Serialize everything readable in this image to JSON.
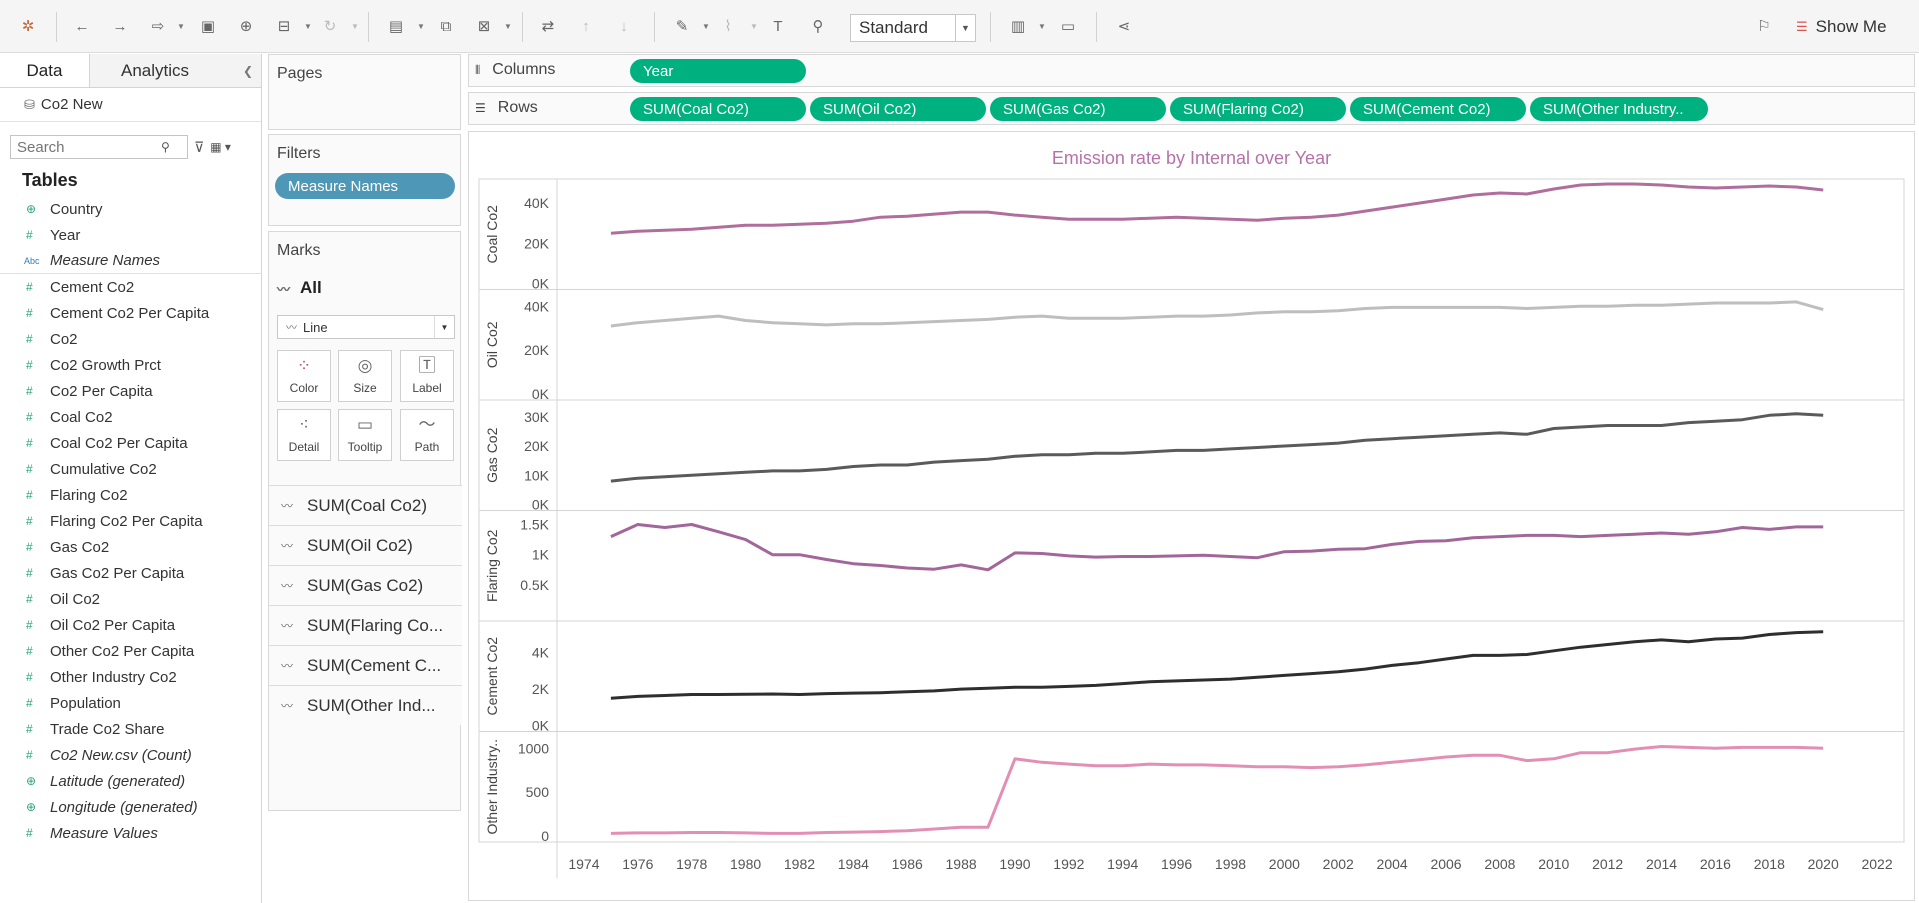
{
  "toolbar": {
    "format_dropdown": "Standard",
    "show_me": "Show Me"
  },
  "left_pane": {
    "tabs": [
      "Data",
      "Analytics"
    ],
    "datasource": "Co2 New",
    "search_placeholder": "Search",
    "tables_heading": "Tables",
    "fields": [
      {
        "icon": "globe",
        "label": "Country"
      },
      {
        "icon": "hash",
        "label": "Year"
      },
      {
        "icon": "abc",
        "label": "Measure Names",
        "italic": true
      },
      {
        "icon": "hash",
        "label": "Cement Co2"
      },
      {
        "icon": "hash",
        "label": "Cement Co2 Per Capita"
      },
      {
        "icon": "hash",
        "label": "Co2"
      },
      {
        "icon": "hash",
        "label": "Co2 Growth Prct"
      },
      {
        "icon": "hash",
        "label": "Co2 Per Capita"
      },
      {
        "icon": "hash",
        "label": "Coal Co2"
      },
      {
        "icon": "hash",
        "label": "Coal Co2 Per Capita"
      },
      {
        "icon": "hash",
        "label": "Cumulative Co2"
      },
      {
        "icon": "hash",
        "label": "Flaring Co2"
      },
      {
        "icon": "hash",
        "label": "Flaring Co2 Per Capita"
      },
      {
        "icon": "hash",
        "label": "Gas Co2"
      },
      {
        "icon": "hash",
        "label": "Gas Co2 Per Capita"
      },
      {
        "icon": "hash",
        "label": "Oil Co2"
      },
      {
        "icon": "hash",
        "label": "Oil Co2 Per Capita"
      },
      {
        "icon": "hash",
        "label": "Other Co2 Per Capita"
      },
      {
        "icon": "hash",
        "label": "Other Industry Co2"
      },
      {
        "icon": "hash",
        "label": "Population"
      },
      {
        "icon": "hash",
        "label": "Trade Co2 Share"
      },
      {
        "icon": "hash",
        "label": "Co2 New.csv (Count)",
        "italic": true
      },
      {
        "icon": "globe",
        "label": "Latitude (generated)",
        "italic": true
      },
      {
        "icon": "globe",
        "label": "Longitude (generated)",
        "italic": true
      },
      {
        "icon": "hash",
        "label": "Measure Values",
        "italic": true
      }
    ]
  },
  "pages": {
    "title": "Pages"
  },
  "filters": {
    "title": "Filters",
    "pill": "Measure Names"
  },
  "marks": {
    "title": "Marks",
    "all_label": "All",
    "mark_type": "Line",
    "buttons": [
      "Color",
      "Size",
      "Label",
      "Detail",
      "Tooltip",
      "Path"
    ],
    "measures": [
      "SUM(Coal Co2)",
      "SUM(Oil Co2)",
      "SUM(Gas Co2)",
      "SUM(Flaring Co...",
      "SUM(Cement C...",
      "SUM(Other Ind..."
    ]
  },
  "shelves": {
    "columns_label": "Columns",
    "rows_label": "Rows",
    "columns": [
      "Year"
    ],
    "rows": [
      "SUM(Coal Co2)",
      "SUM(Oil Co2)",
      "SUM(Gas Co2)",
      "SUM(Flaring Co2)",
      "SUM(Cement Co2)",
      "SUM(Other Industry.."
    ]
  },
  "chart_data": {
    "type": "line",
    "title": "Emission rate by Internal over Year",
    "xlabel": "",
    "x": [
      1975,
      1976,
      1977,
      1978,
      1979,
      1980,
      1981,
      1982,
      1983,
      1984,
      1985,
      1986,
      1987,
      1988,
      1989,
      1990,
      1991,
      1992,
      1993,
      1994,
      1995,
      1996,
      1997,
      1998,
      1999,
      2000,
      2001,
      2002,
      2003,
      2004,
      2005,
      2006,
      2007,
      2008,
      2009,
      2010,
      2011,
      2012,
      2013,
      2014,
      2015,
      2016,
      2017,
      2018,
      2019,
      2020
    ],
    "x_ticks": [
      "1974",
      "1976",
      "1978",
      "1980",
      "1982",
      "1984",
      "1986",
      "1988",
      "1990",
      "1992",
      "1994",
      "1996",
      "1998",
      "2000",
      "2002",
      "2004",
      "2006",
      "2008",
      "2010",
      "2012",
      "2014",
      "2016",
      "2018",
      "2020",
      "2022"
    ],
    "xlim": [
      1973,
      2023
    ],
    "series": [
      {
        "name": "Coal Co2",
        "color": "#b06e9c",
        "ylim": [
          0,
          48000
        ],
        "y_ticks": [
          "0K",
          "20K",
          "40K"
        ],
        "y_tick_values": [
          0,
          20000,
          40000
        ],
        "values": [
          25000,
          26000,
          26500,
          27000,
          28000,
          29000,
          29000,
          29500,
          30000,
          31000,
          33000,
          33500,
          34500,
          35500,
          35500,
          34000,
          33000,
          32000,
          32000,
          32000,
          32500,
          33000,
          32500,
          32000,
          31500,
          32500,
          33000,
          34000,
          36000,
          38000,
          40000,
          42000,
          44000,
          45000,
          44500,
          47000,
          49000,
          49500,
          49500,
          49000,
          48000,
          47500,
          48000,
          48500,
          48000,
          46500
        ]
      },
      {
        "name": "Oil Co2",
        "color": "#bebebe",
        "ylim": [
          0,
          44000
        ],
        "y_ticks": [
          "0K",
          "20K",
          "40K"
        ],
        "y_tick_values": [
          0,
          20000,
          40000
        ],
        "values": [
          31000,
          32500,
          33500,
          34500,
          35500,
          33500,
          32500,
          32000,
          31500,
          32000,
          32000,
          32500,
          33000,
          33500,
          34000,
          35000,
          35500,
          34500,
          34500,
          34500,
          35000,
          35500,
          35500,
          36000,
          37000,
          37500,
          37500,
          38000,
          39000,
          39500,
          39500,
          39500,
          39500,
          39500,
          39000,
          39500,
          40000,
          40000,
          40500,
          40500,
          41000,
          41500,
          41500,
          41500,
          42000,
          38500
        ]
      },
      {
        "name": "Gas Co2",
        "color": "#5a5a5a",
        "ylim": [
          0,
          33000
        ],
        "y_ticks": [
          "0K",
          "10K",
          "20K",
          "30K"
        ],
        "y_tick_values": [
          0,
          10000,
          20000,
          30000
        ],
        "values": [
          8000,
          9000,
          9500,
          10000,
          10500,
          11000,
          11500,
          11500,
          12000,
          13000,
          13500,
          13500,
          14500,
          15000,
          15500,
          16500,
          17000,
          17000,
          17500,
          17500,
          18000,
          18500,
          18500,
          19000,
          19500,
          20000,
          20500,
          21000,
          22000,
          22500,
          23000,
          23500,
          24000,
          24500,
          24000,
          26000,
          26500,
          27000,
          27000,
          27000,
          28000,
          28500,
          29000,
          30500,
          31000,
          30500
        ]
      },
      {
        "name": "Flaring Co2",
        "color": "#a3669a",
        "ylim": [
          0,
          1600
        ],
        "y_ticks": [
          "0.5K",
          "1K",
          "1.5K"
        ],
        "y_tick_values": [
          500,
          1000,
          1500
        ],
        "values": [
          1300,
          1500,
          1450,
          1500,
          1380,
          1250,
          1000,
          1000,
          920,
          850,
          820,
          780,
          760,
          830,
          750,
          1030,
          1020,
          980,
          960,
          970,
          970,
          980,
          990,
          970,
          950,
          1050,
          1060,
          1090,
          1100,
          1170,
          1220,
          1230,
          1280,
          1300,
          1320,
          1320,
          1300,
          1320,
          1340,
          1360,
          1340,
          1380,
          1450,
          1420,
          1460,
          1460
        ]
      },
      {
        "name": "Cement Co2",
        "color": "#2e2e2e",
        "ylim": [
          0,
          5300
        ],
        "y_ticks": [
          "0K",
          "2K",
          "4K"
        ],
        "y_tick_values": [
          0,
          2000,
          4000
        ],
        "values": [
          1500,
          1600,
          1650,
          1700,
          1700,
          1720,
          1730,
          1700,
          1750,
          1780,
          1800,
          1850,
          1900,
          2000,
          2050,
          2100,
          2100,
          2150,
          2200,
          2300,
          2400,
          2450,
          2500,
          2550,
          2650,
          2750,
          2850,
          2950,
          3100,
          3300,
          3450,
          3650,
          3850,
          3850,
          3900,
          4100,
          4300,
          4450,
          4600,
          4700,
          4600,
          4750,
          4800,
          5000,
          5100,
          5150
        ]
      },
      {
        "name": "Other Industry Co2",
        "color": "#e28fb5",
        "ylim": [
          0,
          1100
        ],
        "y_ticks": [
          "0",
          "500",
          "1000"
        ],
        "y_tick_values": [
          0,
          500,
          1000
        ],
        "values": [
          30,
          35,
          35,
          40,
          40,
          35,
          30,
          30,
          40,
          45,
          50,
          60,
          80,
          100,
          100,
          880,
          840,
          820,
          800,
          800,
          820,
          810,
          810,
          800,
          790,
          790,
          780,
          790,
          810,
          840,
          870,
          900,
          920,
          920,
          860,
          880,
          950,
          950,
          990,
          1020,
          1010,
          1000,
          1010,
          1010,
          1010,
          1000
        ]
      }
    ]
  }
}
